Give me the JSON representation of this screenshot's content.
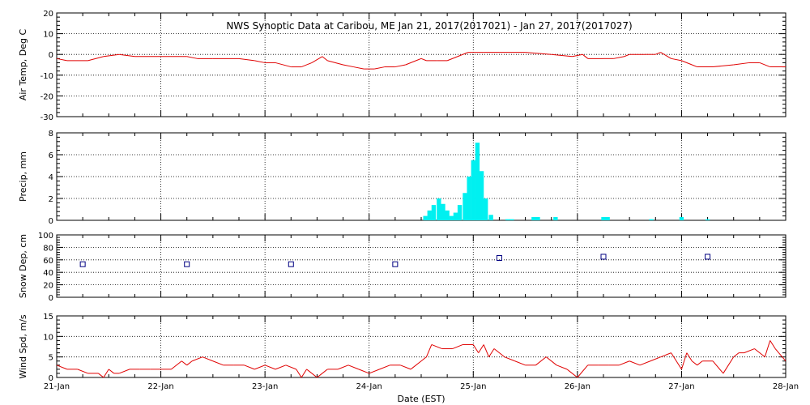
{
  "title": "NWS Synoptic Data at Caribou, ME   Jan 21, 2017(2017021) - Jan 27, 2017(2017027)",
  "xlabel": "Date (EST)",
  "x_ticks": [
    "21-Jan",
    "22-Jan",
    "23-Jan",
    "24-Jan",
    "25-Jan",
    "26-Jan",
    "27-Jan",
    "28-Jan"
  ],
  "colors": {
    "air_temp": "#e00000",
    "precip": "#00f0f0",
    "snow": "#000080",
    "wind": "#e00000",
    "frame": "#000000"
  },
  "chart_data": [
    {
      "type": "line",
      "ylabel": "Air Temp, Deg C",
      "ylim": [
        -30,
        20
      ],
      "yticks": [
        -30,
        -20,
        -10,
        0,
        10,
        20
      ],
      "grid": true,
      "x_unit": "days since 21-Jan 00:00 EST",
      "series": [
        {
          "x": [
            0,
            0.1,
            0.3,
            0.45,
            0.6,
            0.75,
            1.0,
            1.25,
            1.35,
            1.5,
            1.75,
            1.9,
            2.0,
            2.1,
            2.25,
            2.35,
            2.45,
            2.55,
            2.6,
            2.75,
            2.85,
            2.95,
            3.05,
            3.15,
            3.25,
            3.35,
            3.45,
            3.5,
            3.55,
            3.65,
            3.75,
            3.85,
            3.95,
            4.0,
            4.1,
            4.25,
            4.5,
            4.75,
            4.95,
            5.05,
            5.1,
            5.25,
            5.35,
            5.45,
            5.5,
            5.65,
            5.75,
            5.8,
            5.9,
            6.0,
            6.1,
            6.15,
            6.3,
            6.5,
            6.65,
            6.75,
            6.85,
            7.0
          ],
          "y": [
            -2,
            -3,
            -3,
            -1,
            0,
            -1,
            -1,
            -1,
            -2,
            -2,
            -2,
            -3,
            -4,
            -4,
            -6,
            -6,
            -4,
            -1,
            -3,
            -5,
            -6,
            -7,
            -7,
            -6,
            -6,
            -5,
            -3,
            -2,
            -3,
            -3,
            -3,
            -1,
            1,
            1,
            1,
            1,
            1,
            0,
            -1,
            0,
            -2,
            -2,
            -2,
            -1,
            0,
            0,
            0,
            1,
            -2,
            -3,
            -5,
            -6,
            -6,
            -5,
            -4,
            -4,
            -6,
            -6
          ]
        }
      ]
    },
    {
      "type": "bar",
      "ylabel": "Precip, mm",
      "ylim": [
        0,
        8
      ],
      "yticks": [
        0,
        2,
        4,
        6,
        8
      ],
      "grid": true,
      "x_unit": "days since 21-Jan 00:00 EST",
      "bar_width_days": 0.0417,
      "series": [
        {
          "x": [
            3.54,
            3.58,
            3.62,
            3.67,
            3.71,
            3.75,
            3.79,
            3.83,
            3.87,
            3.92,
            3.96,
            4.0,
            4.04,
            4.08,
            4.12,
            4.17,
            4.33,
            4.37,
            4.58,
            4.62,
            4.79,
            5.25,
            5.29,
            5.71,
            6.0,
            6.25
          ],
          "y": [
            0.4,
            0.9,
            1.4,
            2.0,
            1.5,
            0.9,
            0.4,
            0.7,
            1.4,
            2.5,
            4.0,
            5.5,
            7.1,
            4.5,
            2.0,
            0.5,
            0.1,
            0.1,
            0.3,
            0.3,
            0.3,
            0.3,
            0.3,
            0.1,
            0.3,
            0.1
          ]
        }
      ]
    },
    {
      "type": "scatter",
      "ylabel": "Snow Dep, cm",
      "ylim": [
        0,
        100
      ],
      "yticks": [
        0,
        20,
        40,
        60,
        80,
        100
      ],
      "grid": true,
      "x_unit": "days since 21-Jan 00:00 EST",
      "series": [
        {
          "x": [
            0.25,
            1.25,
            2.25,
            3.25,
            4.25,
            5.25,
            6.25
          ],
          "y": [
            53,
            53,
            53,
            53,
            63,
            65,
            65
          ]
        }
      ]
    },
    {
      "type": "line",
      "ylabel": "Wind Spd, m/s",
      "ylim": [
        0,
        15
      ],
      "yticks": [
        0,
        5,
        10,
        15
      ],
      "grid": true,
      "x_unit": "days since 21-Jan 00:00 EST",
      "series": [
        {
          "x": [
            0,
            0.1,
            0.2,
            0.3,
            0.4,
            0.45,
            0.5,
            0.55,
            0.6,
            0.7,
            0.8,
            0.9,
            1.0,
            1.1,
            1.2,
            1.25,
            1.3,
            1.4,
            1.5,
            1.6,
            1.7,
            1.8,
            1.9,
            2.0,
            2.1,
            2.2,
            2.3,
            2.35,
            2.4,
            2.45,
            2.5,
            2.55,
            2.6,
            2.7,
            2.8,
            2.9,
            3.0,
            3.1,
            3.2,
            3.3,
            3.4,
            3.5,
            3.55,
            3.6,
            3.7,
            3.8,
            3.9,
            4.0,
            4.05,
            4.1,
            4.15,
            4.2,
            4.3,
            4.4,
            4.5,
            4.6,
            4.7,
            4.8,
            4.9,
            4.95,
            5.0,
            5.1,
            5.2,
            5.3,
            5.4,
            5.5,
            5.6,
            5.7,
            5.8,
            5.9,
            6.0,
            6.05,
            6.1,
            6.15,
            6.2,
            6.3,
            6.4,
            6.5,
            6.55,
            6.6,
            6.7,
            6.8,
            6.85,
            6.9,
            7.0
          ],
          "y": [
            3,
            2,
            2,
            1,
            1,
            0,
            2,
            1,
            1,
            2,
            2,
            2,
            2,
            2,
            4,
            3,
            4,
            5,
            4,
            3,
            3,
            3,
            2,
            3,
            2,
            3,
            2,
            0,
            2,
            1,
            0,
            1,
            2,
            2,
            3,
            2,
            1,
            2,
            3,
            3,
            2,
            4,
            5,
            8,
            7,
            7,
            8,
            8,
            6,
            8,
            5,
            7,
            5,
            4,
            3,
            3,
            5,
            3,
            2,
            1,
            0,
            3,
            3,
            3,
            3,
            4,
            3,
            4,
            5,
            6,
            2,
            6,
            4,
            3,
            4,
            4,
            1,
            5,
            6,
            6,
            7,
            5,
            9,
            7,
            4
          ]
        }
      ]
    }
  ]
}
